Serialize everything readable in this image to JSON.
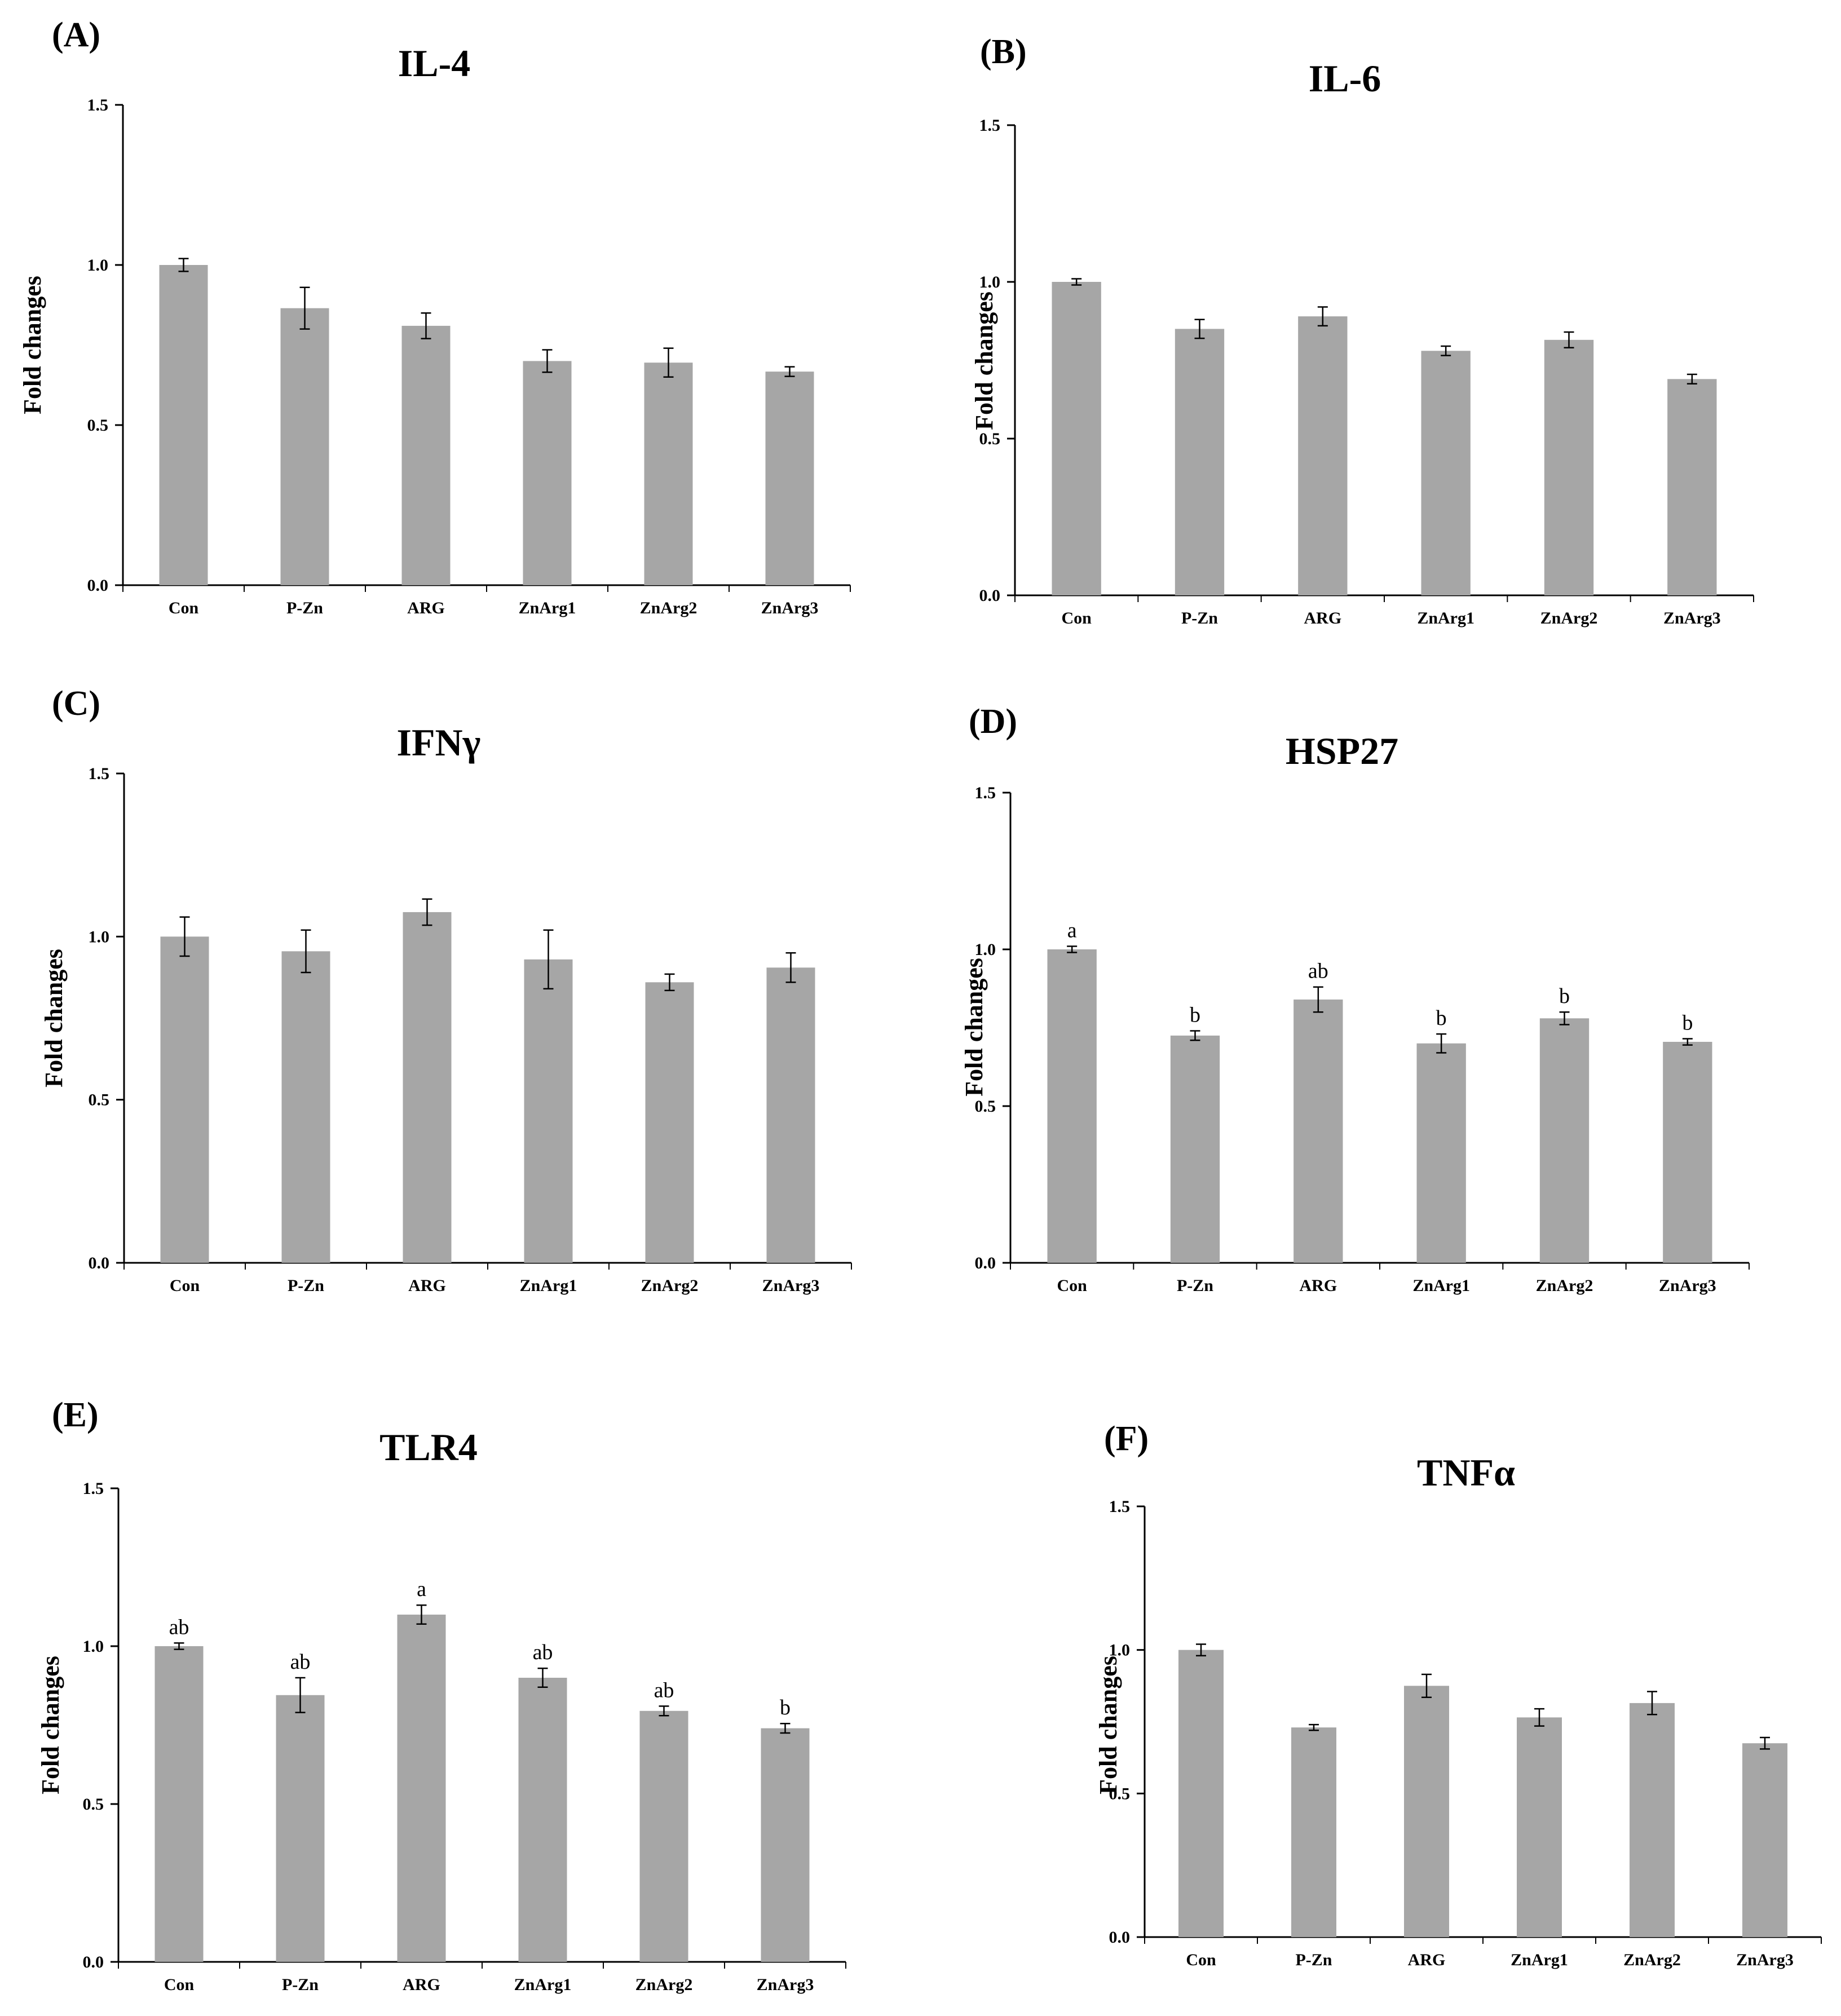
{
  "colors": {
    "bar": "#a6a6a6",
    "axis": "#000000",
    "text": "#000000"
  },
  "chart_data": [
    {
      "type": "bar",
      "panel": "(A)",
      "title": "IL-4",
      "xlabel": "",
      "ylabel": "Fold changes",
      "ylim": [
        0,
        1.5
      ],
      "yticks": [
        "0.0",
        "0.5",
        "1.0",
        "1.5"
      ],
      "categories": [
        "Con",
        "P-Zn",
        "ARG",
        "ZnArg1",
        "ZnArg2",
        "ZnArg3"
      ],
      "values": [
        1.0,
        0.865,
        0.81,
        0.7,
        0.695,
        0.667
      ],
      "errors": [
        0.02,
        0.065,
        0.04,
        0.035,
        0.045,
        0.015
      ],
      "significance": [
        "",
        "",
        "",
        "",
        "",
        ""
      ]
    },
    {
      "type": "bar",
      "panel": "(B)",
      "title": "IL-6",
      "xlabel": "",
      "ylabel": "Fold changes",
      "ylim": [
        0,
        1.5
      ],
      "yticks": [
        "0.0",
        "0.5",
        "1.0",
        "1.5"
      ],
      "categories": [
        "Con",
        "P-Zn",
        "ARG",
        "ZnArg1",
        "ZnArg2",
        "ZnArg3"
      ],
      "values": [
        1.0,
        0.85,
        0.89,
        0.78,
        0.815,
        0.69
      ],
      "errors": [
        0.01,
        0.03,
        0.03,
        0.015,
        0.025,
        0.015
      ],
      "significance": [
        "",
        "",
        "",
        "",
        "",
        ""
      ]
    },
    {
      "type": "bar",
      "panel": "(C)",
      "title": "IFNγ",
      "xlabel": "",
      "ylabel": "Fold changes",
      "ylim": [
        0,
        1.5
      ],
      "yticks": [
        "0.0",
        "0.5",
        "1.0",
        "1.5"
      ],
      "categories": [
        "Con",
        "P-Zn",
        "ARG",
        "ZnArg1",
        "ZnArg2",
        "ZnArg3"
      ],
      "values": [
        1.0,
        0.955,
        1.075,
        0.93,
        0.86,
        0.905
      ],
      "errors": [
        0.06,
        0.065,
        0.04,
        0.09,
        0.025,
        0.045
      ],
      "significance": [
        "",
        "",
        "",
        "",
        "",
        ""
      ]
    },
    {
      "type": "bar",
      "panel": "(D)",
      "title": "HSP27",
      "xlabel": "",
      "ylabel": "Fold changes",
      "ylim": [
        0,
        1.5
      ],
      "yticks": [
        "0.0",
        "0.5",
        "1.0",
        "1.5"
      ],
      "categories": [
        "Con",
        "P-Zn",
        "ARG",
        "ZnArg1",
        "ZnArg2",
        "ZnArg3"
      ],
      "values": [
        1.0,
        0.725,
        0.84,
        0.7,
        0.78,
        0.705
      ],
      "errors": [
        0.01,
        0.015,
        0.04,
        0.03,
        0.02,
        0.01
      ],
      "significance": [
        "a",
        "b",
        "ab",
        "b",
        "b",
        "b"
      ]
    },
    {
      "type": "bar",
      "panel": "(E)",
      "title": "TLR4",
      "xlabel": "",
      "ylabel": "Fold changes",
      "ylim": [
        0,
        1.5
      ],
      "yticks": [
        "0.0",
        "0.5",
        "1.0",
        "1.5"
      ],
      "categories": [
        "Con",
        "P-Zn",
        "ARG",
        "ZnArg1",
        "ZnArg2",
        "ZnArg3"
      ],
      "values": [
        1.0,
        0.845,
        1.1,
        0.9,
        0.795,
        0.74
      ],
      "errors": [
        0.01,
        0.055,
        0.03,
        0.03,
        0.015,
        0.015
      ],
      "significance": [
        "ab",
        "ab",
        "a",
        "ab",
        "ab",
        "b"
      ]
    },
    {
      "type": "bar",
      "panel": "(F)",
      "title": "TNFα",
      "xlabel": "",
      "ylabel": "Fold changes",
      "ylim": [
        0,
        1.5
      ],
      "yticks": [
        "0.0",
        "0.5",
        "1.0",
        "1.5"
      ],
      "categories": [
        "Con",
        "P-Zn",
        "ARG",
        "ZnArg1",
        "ZnArg2",
        "ZnArg3"
      ],
      "values": [
        1.0,
        0.73,
        0.875,
        0.765,
        0.815,
        0.675
      ],
      "errors": [
        0.02,
        0.01,
        0.04,
        0.03,
        0.04,
        0.02
      ],
      "significance": [
        "",
        "",
        "",
        "",
        "",
        ""
      ]
    }
  ]
}
